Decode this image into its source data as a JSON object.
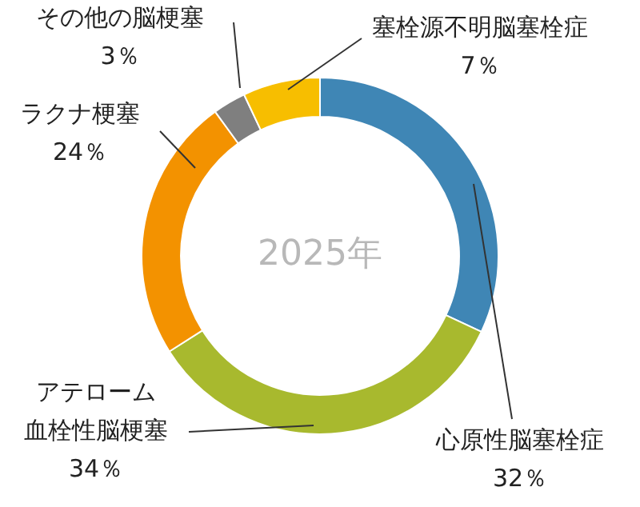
{
  "chart_data": {
    "type": "donut",
    "title": "2025年",
    "categories": [
      "心原性脳塞栓症",
      "アテローム血栓性脳梗塞",
      "ラクナ梗塞",
      "その他の脳梗塞",
      "塞栓源不明脳塞栓症"
    ],
    "values": [
      32,
      34,
      24,
      3,
      7
    ],
    "value_labels": [
      "32％",
      "34％",
      "24％",
      "3％",
      "7％"
    ],
    "colors": [
      "#3f86b5",
      "#a8b92e",
      "#f39200",
      "#7f7f7f",
      "#f7be00"
    ],
    "legend": false
  }
}
